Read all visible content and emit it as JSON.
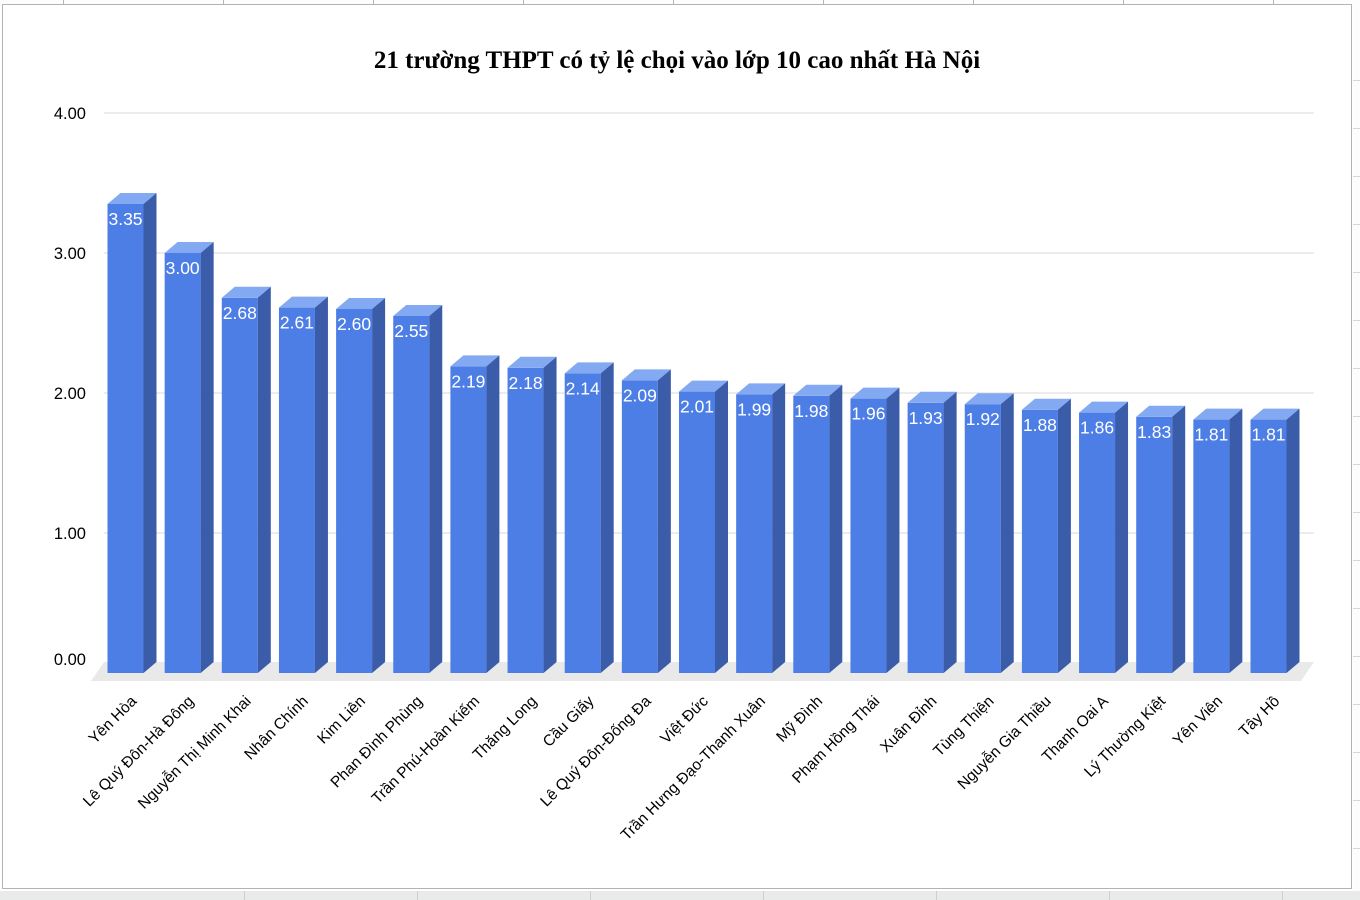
{
  "title": "21 trường THPT có tỷ lệ chọi vào lớp 10 cao nhất Hà Nội",
  "chart_data": {
    "type": "bar",
    "style": "3d-column",
    "title": "21 trường THPT có tỷ lệ chọi vào lớp 10 cao nhất Hà Nội",
    "categories": [
      "Yên Hòa",
      "Lê Quý Đôn-Hà Đông",
      "Nguyễn Thị Minh Khai",
      "Nhân Chính",
      "Kim Liên",
      "Phan Đình Phùng",
      "Trần Phú-Hoàn Kiếm",
      "Thăng Long",
      "Cầu Giấy",
      "Lê Quý Đôn-Đống Đa",
      "Việt Đức",
      "Trần Hưng Đạo-Thanh Xuân",
      "Mỹ Đình",
      "Phạm Hồng Thái",
      "Xuân Đỉnh",
      "Tùng Thiện",
      "Nguyễn Gia Thiều",
      "Thanh Oai A",
      "Lý Thường Kiệt",
      "Yên Viên",
      "Tây Hồ"
    ],
    "values": [
      3.35,
      3.0,
      2.68,
      2.61,
      2.6,
      2.55,
      2.19,
      2.18,
      2.14,
      2.09,
      2.01,
      1.99,
      1.98,
      1.96,
      1.93,
      1.92,
      1.88,
      1.86,
      1.83,
      1.81,
      1.81
    ],
    "value_labels": [
      "3.35",
      "3.00",
      "2.68",
      "2.61",
      "2.60",
      "2.55",
      "2.19",
      "2.18",
      "2.14",
      "2.09",
      "2.01",
      "1.99",
      "1.98",
      "1.96",
      "1.93",
      "1.92",
      "1.88",
      "1.86",
      "1.83",
      "1.81",
      "1.81"
    ],
    "xlabel": "",
    "ylabel": "",
    "ylim": [
      0,
      4
    ],
    "y_ticks": [
      {
        "label": "4.00",
        "value": 4
      },
      {
        "label": "3.00",
        "value": 3
      },
      {
        "label": "2.00",
        "value": 2
      },
      {
        "label": "1.00",
        "value": 1
      },
      {
        "label": "0.00",
        "value": 0
      }
    ],
    "grid": true,
    "legend": "none",
    "colors": {
      "bar_front": "#4d7ee6",
      "bar_top": "#82a9f1",
      "bar_side": "#3b5ca8",
      "value_text": "#ffffff",
      "gridline": "#e0e0e0",
      "floor": "#e9e9e9",
      "axis_text": "#000000",
      "title_text": "#000000",
      "chart_border": "#b3b3b3"
    }
  }
}
